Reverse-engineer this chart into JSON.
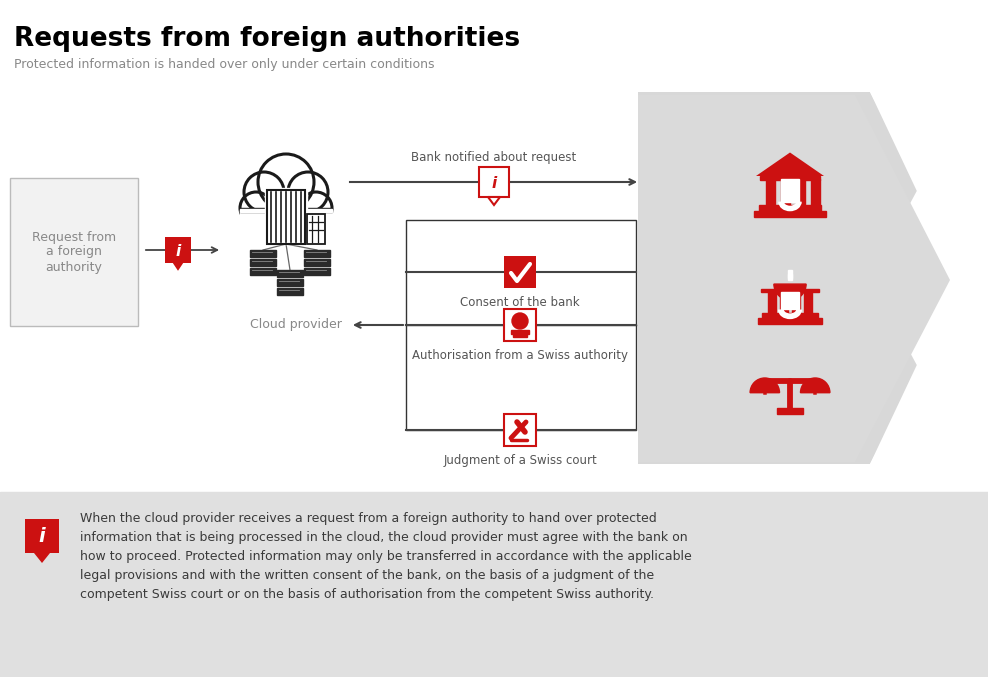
{
  "title": "Requests from foreign authorities",
  "subtitle": "Protected information is handed over only under certain conditions",
  "red_color": "#CC1111",
  "dark_gray": "#555555",
  "medium_gray": "#888888",
  "arrow_color": "#444444",
  "bottom_bg": "#E2E2E2",
  "bottom_text_line1": "When the cloud provider receives a request from a foreign authority to hand over protected",
  "bottom_text_line2": "information that is being processed in the cloud, the cloud provider must agree with the bank on",
  "bottom_text_line3": "how to proceed. Protected information may only be transferred in accordance with the applicable",
  "bottom_text_line4": "legal provisions and with the written consent of the bank, on the basis of a judgment of the",
  "bottom_text_line5": "competent Swiss court or on the basis of authorisation from the competent Swiss authority.",
  "label_request": "Request from\na foreign\nauthority",
  "label_cloud": "Cloud provider",
  "label_bank_notified": "Bank notified about request",
  "label_consent": "Consent of the bank",
  "label_auth": "Authorisation from a Swiss authority",
  "label_judgment": "Judgment of a Swiss court",
  "fig_w": 9.88,
  "fig_h": 6.77,
  "dpi": 100
}
